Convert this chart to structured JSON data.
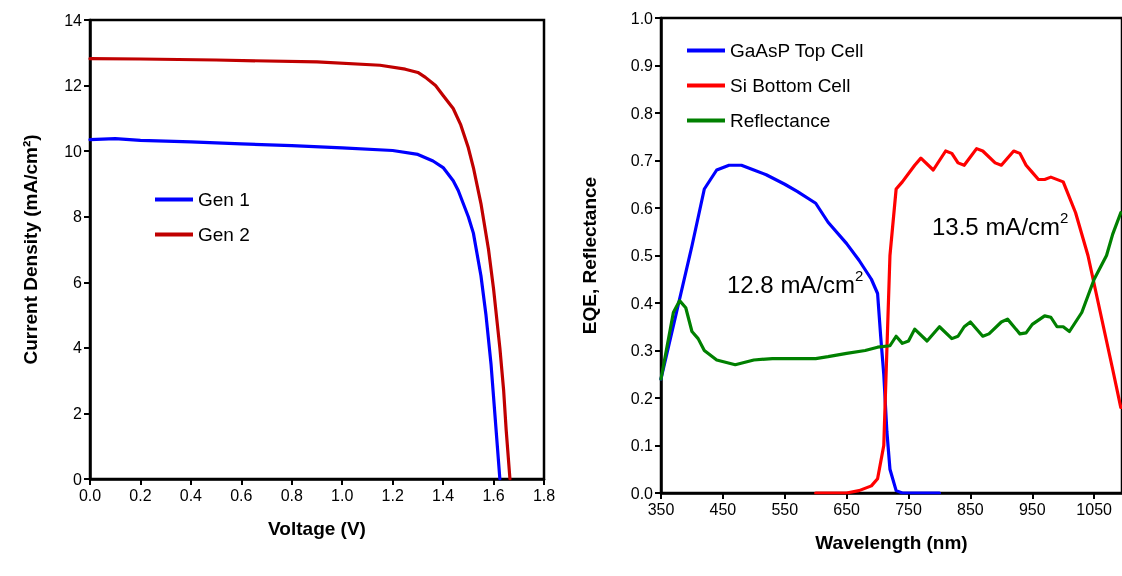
{
  "chart_data": [
    {
      "type": "line",
      "xlabel": "Voltage (V)",
      "ylabel": "Current Density (mA/cm²)",
      "xlim": [
        0,
        1.8
      ],
      "xticks": [
        {
          "value": 0,
          "label": "0.0"
        },
        {
          "value": 0.2,
          "label": "0.2"
        },
        {
          "value": 0.4,
          "label": "0.4"
        },
        {
          "value": 0.6,
          "label": "0.6"
        },
        {
          "value": 0.8,
          "label": "0.8"
        },
        {
          "value": 1,
          "label": "1.0"
        },
        {
          "value": 1.2,
          "label": "1.2"
        },
        {
          "value": 1.4,
          "label": "1.4"
        },
        {
          "value": 1.6,
          "label": "1.6"
        },
        {
          "value": 1.8,
          "label": "1.8"
        }
      ],
      "ylim": [
        0,
        14
      ],
      "yticks": [
        0,
        2,
        4,
        6,
        8,
        10,
        12,
        14
      ],
      "grid": false,
      "legend": "left",
      "marker": "none",
      "line_style": "solid",
      "series": [
        {
          "name": "Gen 1",
          "color": "#0000ff",
          "x": [
            0,
            0.1,
            0.2,
            0.4,
            0.6,
            0.8,
            1.0,
            1.2,
            1.3,
            1.36,
            1.4,
            1.44,
            1.46,
            1.5,
            1.52,
            1.55,
            1.57,
            1.59,
            1.605,
            1.615,
            1.625
          ],
          "values": [
            10.35,
            10.38,
            10.33,
            10.28,
            10.22,
            10.17,
            10.1,
            10.02,
            9.9,
            9.7,
            9.5,
            9.1,
            8.8,
            8.0,
            7.5,
            6.2,
            5.0,
            3.5,
            2.0,
            1.0,
            0
          ]
        },
        {
          "name": "Gen 2",
          "color": "#c00000",
          "x": [
            0,
            0.2,
            0.5,
            0.9,
            1.15,
            1.25,
            1.3,
            1.33,
            1.37,
            1.4,
            1.44,
            1.47,
            1.5,
            1.52,
            1.55,
            1.58,
            1.6,
            1.625,
            1.64,
            1.65,
            1.665
          ],
          "values": [
            12.82,
            12.81,
            12.78,
            12.72,
            12.62,
            12.5,
            12.4,
            12.25,
            12.0,
            11.7,
            11.3,
            10.8,
            10.1,
            9.5,
            8.4,
            7.0,
            5.8,
            4.0,
            2.7,
            1.5,
            0
          ]
        }
      ]
    },
    {
      "type": "line",
      "xlabel": "Wavelength (nm)",
      "ylabel": "EQE, Reflectance",
      "xlim": [
        350,
        1095
      ],
      "xticks": [
        350,
        450,
        550,
        650,
        750,
        850,
        950,
        1050
      ],
      "ylim": [
        0,
        1
      ],
      "yticks": [
        {
          "value": 0,
          "label": "0.0"
        },
        {
          "value": 0.1,
          "label": "0.1"
        },
        {
          "value": 0.2,
          "label": "0.2"
        },
        {
          "value": 0.3,
          "label": "0.3"
        },
        {
          "value": 0.4,
          "label": "0.4"
        },
        {
          "value": 0.5,
          "label": "0.5"
        },
        {
          "value": 0.6,
          "label": "0.6"
        },
        {
          "value": 0.7,
          "label": "0.7"
        },
        {
          "value": 0.8,
          "label": "0.8"
        },
        {
          "value": 0.9,
          "label": "0.9"
        },
        {
          "value": 1,
          "label": "1.0"
        }
      ],
      "grid": false,
      "legend": "top left",
      "marker": "none",
      "line_style": "solid",
      "annotations": [
        "12.8 mA/cm$^{2}$",
        "13.5 mA/cm$^{2}$"
      ],
      "series": [
        {
          "name": "GaAsP Top Cell",
          "color": "#0000ff",
          "x": [
            350,
            375,
            400,
            420,
            440,
            460,
            480,
            500,
            520,
            550,
            570,
            600,
            620,
            650,
            670,
            690,
            700,
            705,
            710,
            715,
            720,
            730,
            740,
            800
          ],
          "values": [
            0.24,
            0.38,
            0.52,
            0.64,
            0.68,
            0.69,
            0.69,
            0.68,
            0.67,
            0.65,
            0.635,
            0.61,
            0.57,
            0.525,
            0.49,
            0.45,
            0.42,
            0.33,
            0.25,
            0.13,
            0.05,
            0.005,
            0,
            0
          ]
        },
        {
          "name": "Si Bottom Cell",
          "color": "#ff0000",
          "x": [
            600,
            650,
            670,
            690,
            700,
            710,
            715,
            720,
            730,
            740,
            760,
            770,
            790,
            810,
            820,
            830,
            840,
            860,
            870,
            890,
            900,
            920,
            930,
            940,
            950,
            960,
            970,
            980,
            1000,
            1020,
            1040,
            1060,
            1080,
            1093
          ],
          "values": [
            0,
            0,
            0.005,
            0.015,
            0.03,
            0.1,
            0.3,
            0.5,
            0.64,
            0.655,
            0.69,
            0.705,
            0.68,
            0.72,
            0.715,
            0.695,
            0.69,
            0.725,
            0.72,
            0.695,
            0.69,
            0.72,
            0.715,
            0.69,
            0.675,
            0.66,
            0.66,
            0.665,
            0.655,
            0.59,
            0.5,
            0.38,
            0.26,
            0.18
          ]
        },
        {
          "name": "Reflectance",
          "color": "#008000",
          "x": [
            350,
            370,
            380,
            390,
            400,
            410,
            420,
            440,
            470,
            500,
            530,
            600,
            620,
            650,
            680,
            700,
            720,
            730,
            740,
            750,
            760,
            780,
            800,
            820,
            830,
            840,
            850,
            870,
            880,
            900,
            910,
            930,
            940,
            950,
            970,
            980,
            990,
            1000,
            1010,
            1030,
            1050,
            1070,
            1080,
            1093
          ],
          "values": [
            0.24,
            0.38,
            0.405,
            0.39,
            0.34,
            0.325,
            0.3,
            0.28,
            0.27,
            0.28,
            0.283,
            0.283,
            0.287,
            0.294,
            0.3,
            0.307,
            0.31,
            0.33,
            0.315,
            0.32,
            0.345,
            0.32,
            0.35,
            0.325,
            0.33,
            0.35,
            0.36,
            0.33,
            0.335,
            0.36,
            0.366,
            0.335,
            0.337,
            0.355,
            0.373,
            0.37,
            0.35,
            0.35,
            0.34,
            0.38,
            0.45,
            0.5,
            0.545,
            0.59
          ]
        }
      ]
    }
  ]
}
